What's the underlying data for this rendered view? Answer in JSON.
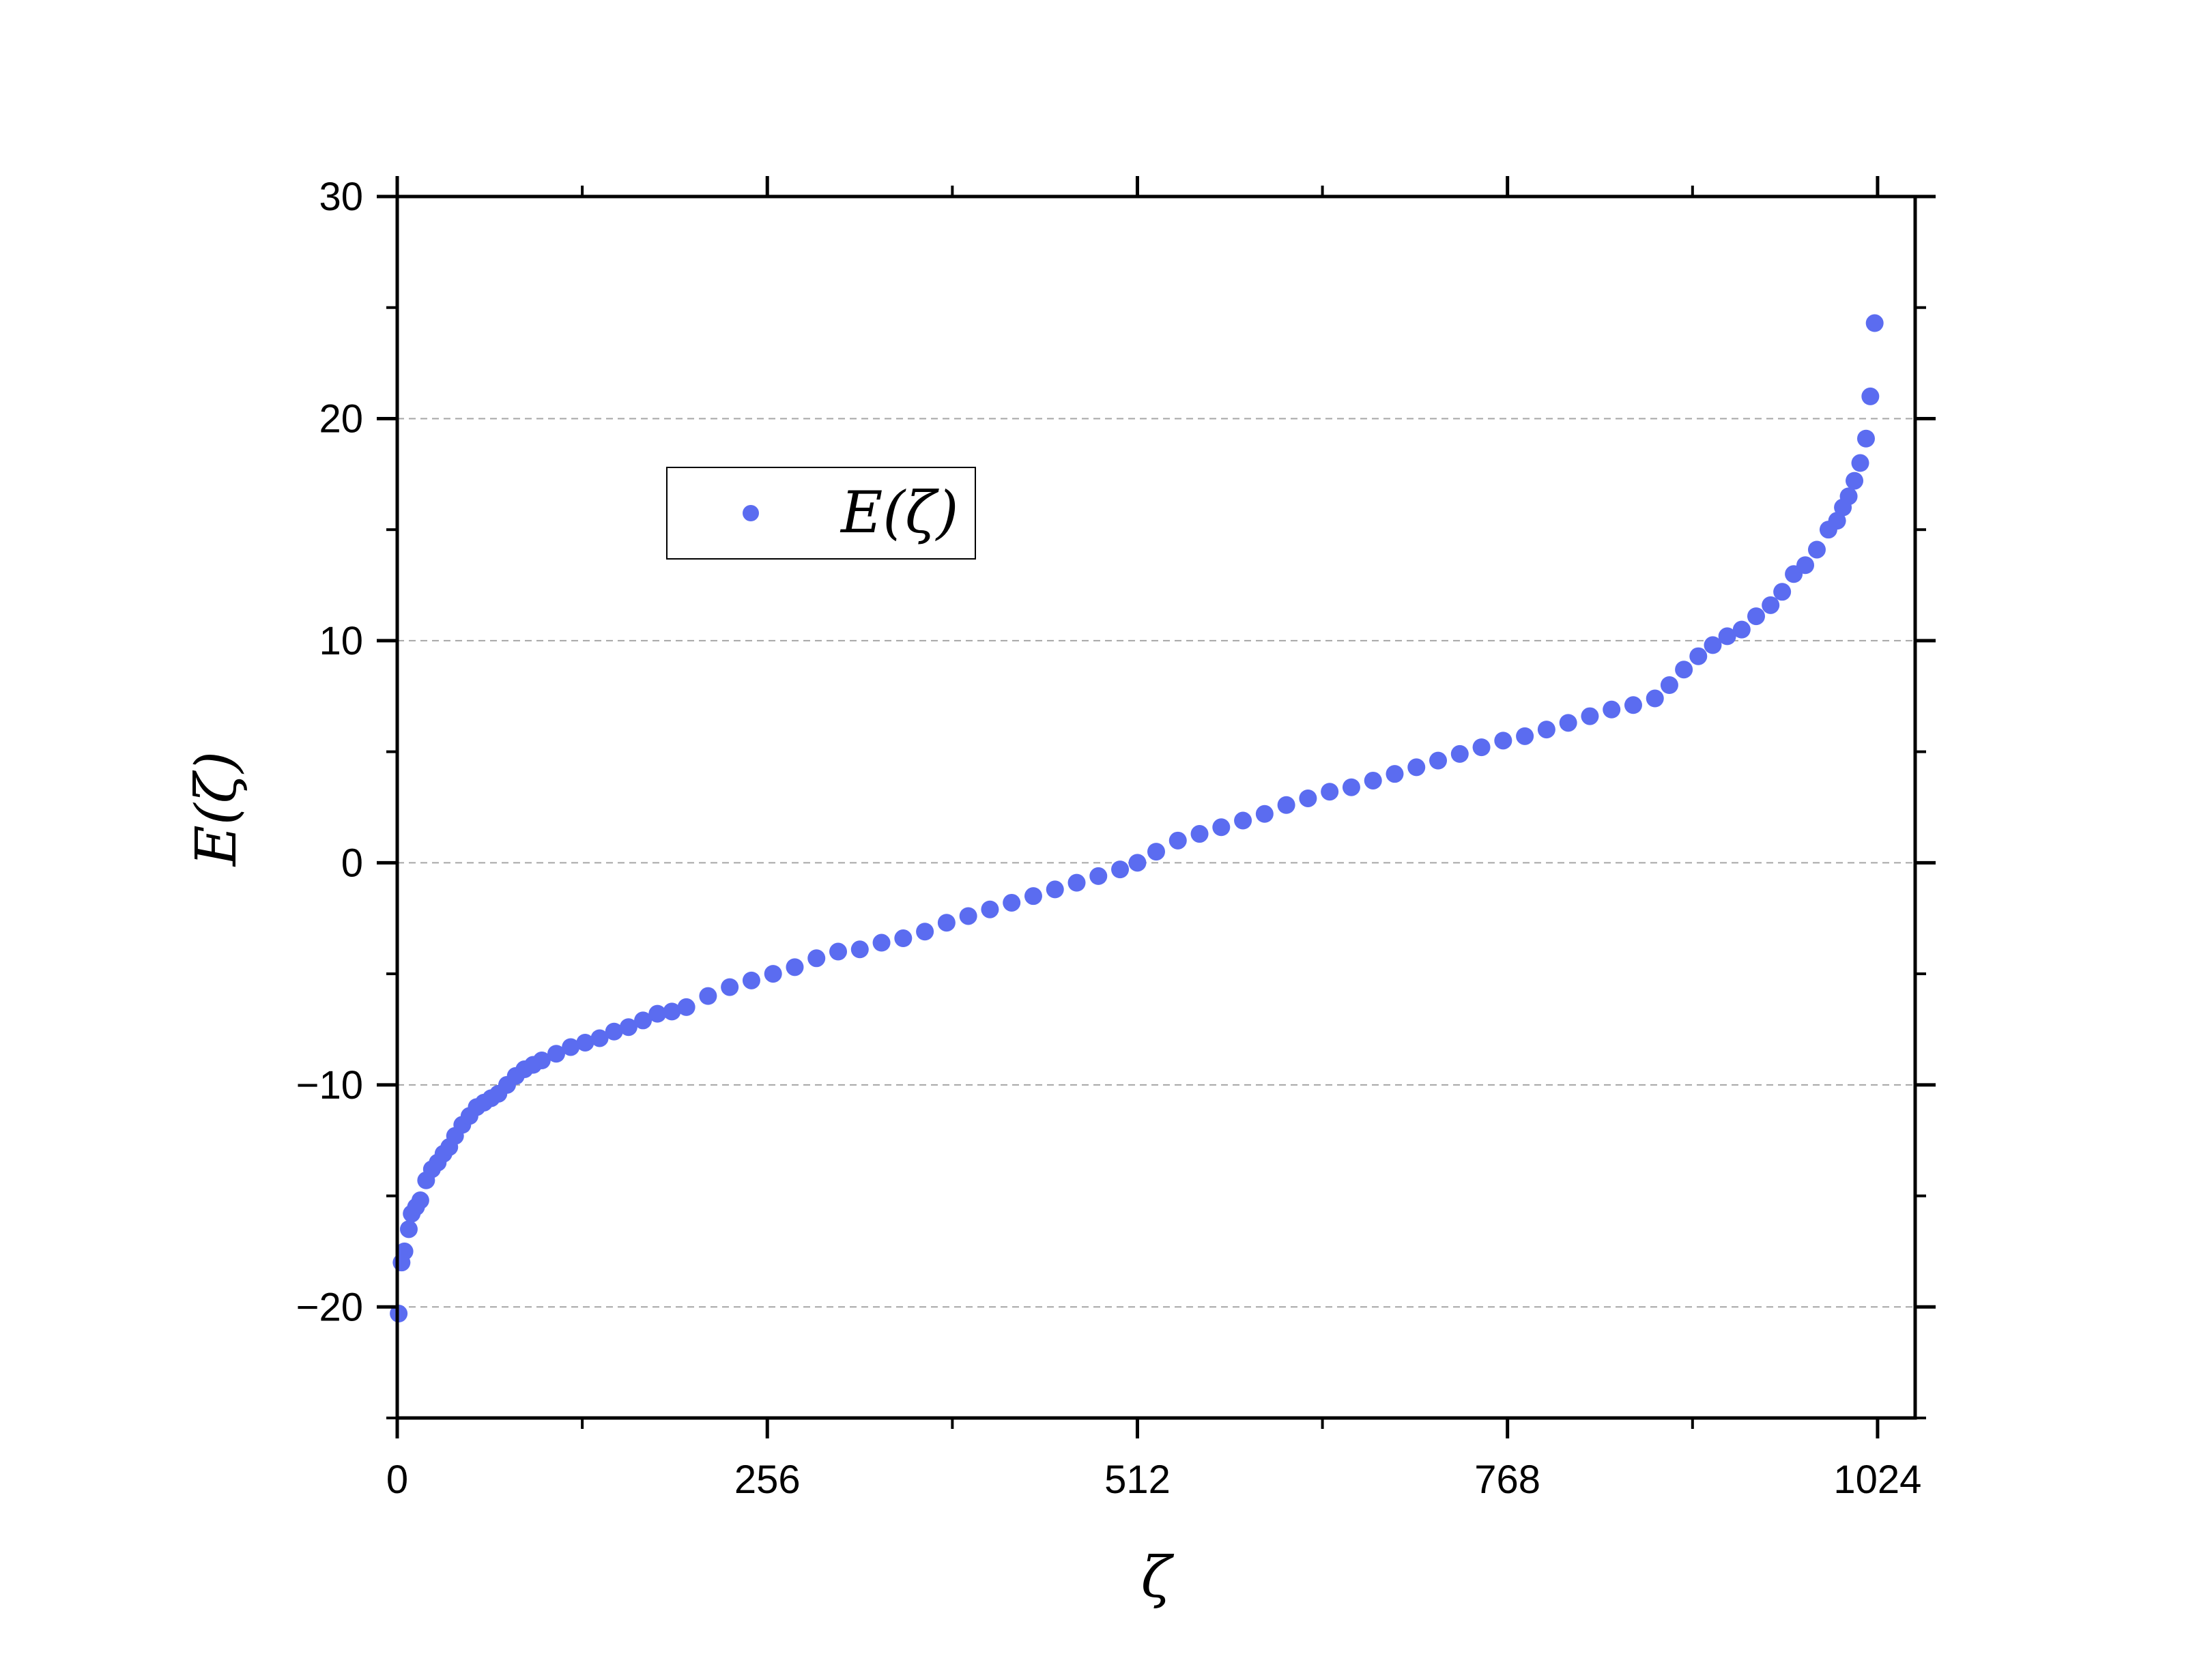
{
  "chart_data": {
    "type": "scatter",
    "xlabel": "ζ",
    "ylabel": "E(ζ)",
    "xlim": [
      0,
      1050
    ],
    "ylim": [
      -25,
      30
    ],
    "x_ticks": [
      0,
      256,
      512,
      768,
      1024
    ],
    "x_tick_labels": [
      "0",
      "256",
      "512",
      "768",
      "1024"
    ],
    "y_ticks": [
      -20,
      -10,
      0,
      10,
      20,
      30
    ],
    "y_tick_labels": [
      "−20",
      "−10",
      "0",
      "10",
      "20",
      "30"
    ],
    "grid": "horizontal dashed at -20, -10, 0, 10, 20",
    "legend_position": "upper-left",
    "marker_color": "#5b6cf0",
    "series": [
      {
        "name": "E(ζ)",
        "x": [
          1,
          3,
          5,
          8,
          10,
          13,
          16,
          20,
          24,
          28,
          32,
          36,
          40,
          45,
          50,
          55,
          60,
          65,
          70,
          76,
          82,
          88,
          94,
          100,
          110,
          120,
          130,
          140,
          150,
          160,
          170,
          180,
          190,
          200,
          215,
          230,
          245,
          260,
          275,
          290,
          305,
          320,
          335,
          350,
          365,
          380,
          395,
          410,
          425,
          440,
          455,
          470,
          485,
          500,
          512,
          525,
          540,
          555,
          570,
          585,
          600,
          615,
          630,
          645,
          660,
          675,
          690,
          705,
          720,
          735,
          750,
          765,
          780,
          795,
          810,
          825,
          840,
          855,
          870,
          880,
          890,
          900,
          910,
          920,
          930,
          940,
          950,
          958,
          966,
          974,
          982,
          990,
          996,
          1000,
          1004,
          1008,
          1012,
          1016,
          1019,
          1022
        ],
        "y": [
          -20.3,
          -18.0,
          -17.5,
          -16.5,
          -15.8,
          -15.5,
          -15.2,
          -14.3,
          -13.8,
          -13.5,
          -13.1,
          -12.8,
          -12.3,
          -11.8,
          -11.4,
          -11.0,
          -10.8,
          -10.6,
          -10.4,
          -10.0,
          -9.6,
          -9.3,
          -9.1,
          -8.9,
          -8.6,
          -8.3,
          -8.1,
          -7.9,
          -7.6,
          -7.4,
          -7.1,
          -6.8,
          -6.7,
          -6.5,
          -6.0,
          -5.6,
          -5.3,
          -5.0,
          -4.7,
          -4.3,
          -4.0,
          -3.9,
          -3.6,
          -3.4,
          -3.1,
          -2.7,
          -2.4,
          -2.1,
          -1.8,
          -1.5,
          -1.2,
          -0.9,
          -0.6,
          -0.3,
          0.0,
          0.5,
          1.0,
          1.3,
          1.6,
          1.9,
          2.2,
          2.6,
          2.9,
          3.2,
          3.4,
          3.7,
          4.0,
          4.3,
          4.6,
          4.9,
          5.2,
          5.5,
          5.7,
          6.0,
          6.3,
          6.6,
          6.9,
          7.1,
          7.4,
          8.0,
          8.7,
          9.3,
          9.8,
          10.2,
          10.5,
          11.1,
          11.6,
          12.2,
          13.0,
          13.4,
          14.1,
          15.0,
          15.4,
          16.0,
          16.5,
          17.2,
          18.0,
          19.1,
          21.0,
          24.3
        ]
      }
    ]
  }
}
